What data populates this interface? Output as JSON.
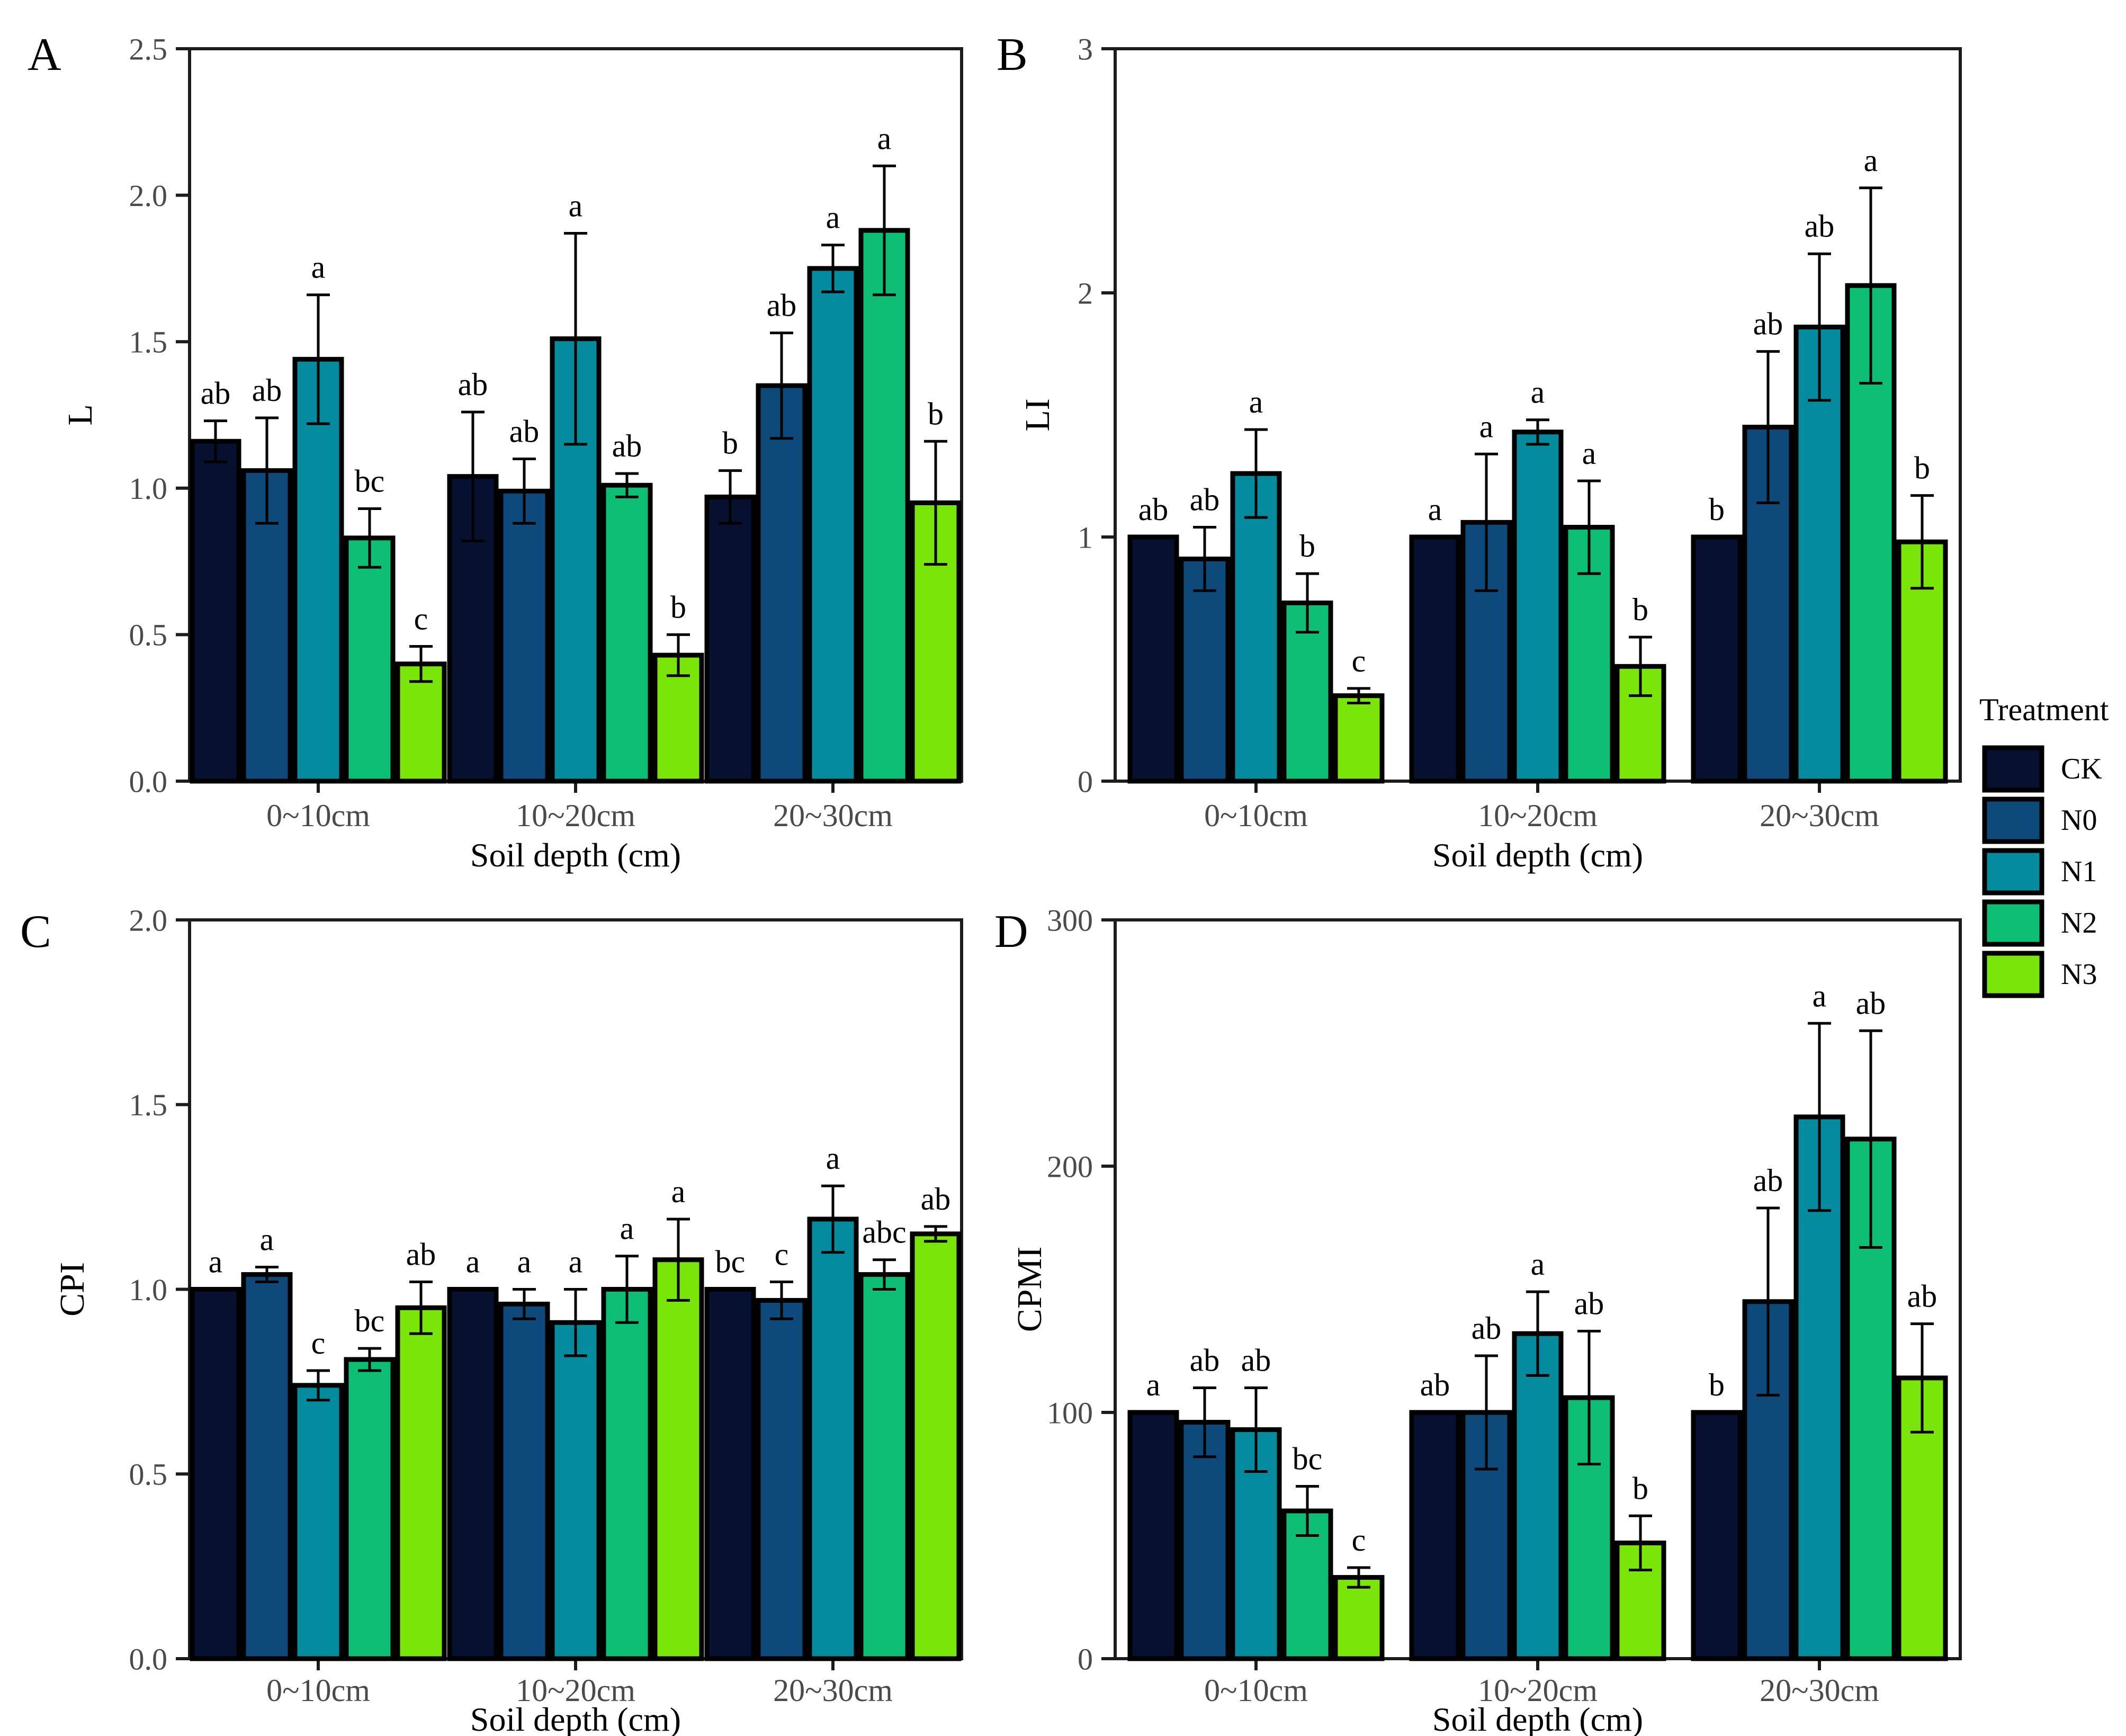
{
  "figure": {
    "background": "#ffffff",
    "axis_color": "#1c1c1c",
    "tick_label_color": "#4a4a4a",
    "xlabel": "Soil depth (cm)",
    "categories": [
      "0~10cm",
      "10~20cm",
      "20~30cm"
    ],
    "legend": {
      "title": "Treatment",
      "items": [
        {
          "label": "CK",
          "color": "#061130"
        },
        {
          "label": "N0",
          "color": "#0d4a7b"
        },
        {
          "label": "N1",
          "color": "#048b9d"
        },
        {
          "label": "N2",
          "color": "#0cbf75"
        },
        {
          "label": "N3",
          "color": "#79e608"
        }
      ]
    }
  },
  "chart_data": [
    {
      "type": "bar",
      "panel_letter": "A",
      "title": "",
      "xlabel": "Soil depth (cm)",
      "ylabel": "L",
      "ylim": [
        0,
        2.5
      ],
      "ytick_step": 0.5,
      "ytick_decimals": 1,
      "grid": false,
      "categories": [
        "0~10cm",
        "10~20cm",
        "20~30cm"
      ],
      "series": [
        {
          "name": "CK",
          "color": "#061130",
          "values": [
            1.16,
            1.04,
            0.97
          ],
          "errors": [
            0.07,
            0.22,
            0.09
          ],
          "sig_letters": [
            "ab",
            "ab",
            "b"
          ]
        },
        {
          "name": "N0",
          "color": "#0d4a7b",
          "values": [
            1.06,
            0.99,
            1.35
          ],
          "errors": [
            0.18,
            0.11,
            0.18
          ],
          "sig_letters": [
            "ab",
            "ab",
            "ab"
          ]
        },
        {
          "name": "N1",
          "color": "#048b9d",
          "values": [
            1.44,
            1.51,
            1.75
          ],
          "errors": [
            0.22,
            0.36,
            0.08
          ],
          "sig_letters": [
            "a",
            "a",
            "a"
          ]
        },
        {
          "name": "N2",
          "color": "#0cbf75",
          "values": [
            0.83,
            1.01,
            1.88
          ],
          "errors": [
            0.1,
            0.04,
            0.22
          ],
          "sig_letters": [
            "bc",
            "ab",
            "a"
          ]
        },
        {
          "name": "N3",
          "color": "#79e608",
          "values": [
            0.4,
            0.43,
            0.95
          ],
          "errors": [
            0.06,
            0.07,
            0.21
          ],
          "sig_letters": [
            "c",
            "b",
            "b"
          ]
        }
      ]
    },
    {
      "type": "bar",
      "panel_letter": "B",
      "title": "",
      "xlabel": "Soil depth (cm)",
      "ylabel": "LI",
      "ylim": [
        0,
        3
      ],
      "ytick_step": 1,
      "ytick_decimals": 0,
      "grid": false,
      "categories": [
        "0~10cm",
        "10~20cm",
        "20~30cm"
      ],
      "series": [
        {
          "name": "CK",
          "color": "#061130",
          "values": [
            1.0,
            1.0,
            1.0
          ],
          "errors": [
            null,
            null,
            null
          ],
          "sig_letters": [
            "ab",
            "a",
            "b"
          ]
        },
        {
          "name": "N0",
          "color": "#0d4a7b",
          "values": [
            0.91,
            1.06,
            1.45
          ],
          "errors": [
            0.13,
            0.28,
            0.31
          ],
          "sig_letters": [
            "ab",
            "a",
            "ab"
          ]
        },
        {
          "name": "N1",
          "color": "#048b9d",
          "values": [
            1.26,
            1.43,
            1.86
          ],
          "errors": [
            0.18,
            0.05,
            0.3
          ],
          "sig_letters": [
            "a",
            "a",
            "ab"
          ]
        },
        {
          "name": "N2",
          "color": "#0cbf75",
          "values": [
            0.73,
            1.04,
            2.03
          ],
          "errors": [
            0.12,
            0.19,
            0.4
          ],
          "sig_letters": [
            "b",
            "a",
            "a"
          ]
        },
        {
          "name": "N3",
          "color": "#79e608",
          "values": [
            0.35,
            0.47,
            0.98
          ],
          "errors": [
            0.03,
            0.12,
            0.19
          ],
          "sig_letters": [
            "c",
            "b",
            "b"
          ]
        }
      ]
    },
    {
      "type": "bar",
      "panel_letter": "C",
      "title": "",
      "xlabel": "Soil depth (cm)",
      "ylabel": "CPI",
      "ylim": [
        0,
        2.0
      ],
      "ytick_step": 0.5,
      "ytick_decimals": 1,
      "grid": false,
      "categories": [
        "0~10cm",
        "10~20cm",
        "20~30cm"
      ],
      "series": [
        {
          "name": "CK",
          "color": "#061130",
          "values": [
            1.0,
            1.0,
            1.0
          ],
          "errors": [
            null,
            null,
            null
          ],
          "sig_letters": [
            "a",
            "a",
            "bc"
          ]
        },
        {
          "name": "N0",
          "color": "#0d4a7b",
          "values": [
            1.04,
            0.96,
            0.97
          ],
          "errors": [
            0.02,
            0.04,
            0.05
          ],
          "sig_letters": [
            "a",
            "a",
            "c"
          ]
        },
        {
          "name": "N1",
          "color": "#048b9d",
          "values": [
            0.74,
            0.91,
            1.19
          ],
          "errors": [
            0.04,
            0.09,
            0.09
          ],
          "sig_letters": [
            "c",
            "a",
            "a"
          ]
        },
        {
          "name": "N2",
          "color": "#0cbf75",
          "values": [
            0.81,
            1.0,
            1.04
          ],
          "errors": [
            0.03,
            0.09,
            0.04
          ],
          "sig_letters": [
            "bc",
            "a",
            "abc"
          ]
        },
        {
          "name": "N3",
          "color": "#79e608",
          "values": [
            0.95,
            1.08,
            1.15
          ],
          "errors": [
            0.07,
            0.11,
            0.02
          ],
          "sig_letters": [
            "ab",
            "a",
            "ab"
          ]
        }
      ]
    },
    {
      "type": "bar",
      "panel_letter": "D",
      "title": "",
      "xlabel": "Soil depth (cm)",
      "ylabel": "CPMI",
      "ylim": [
        0,
        300
      ],
      "ytick_step": 100,
      "ytick_decimals": 0,
      "grid": false,
      "categories": [
        "0~10cm",
        "10~20cm",
        "20~30cm"
      ],
      "series": [
        {
          "name": "CK",
          "color": "#061130",
          "values": [
            100,
            100,
            100
          ],
          "errors": [
            null,
            null,
            null
          ],
          "sig_letters": [
            "a",
            "ab",
            "b"
          ]
        },
        {
          "name": "N0",
          "color": "#0d4a7b",
          "values": [
            96,
            100,
            145
          ],
          "errors": [
            14,
            23,
            38
          ],
          "sig_letters": [
            "ab",
            "ab",
            "ab"
          ]
        },
        {
          "name": "N1",
          "color": "#048b9d",
          "values": [
            93,
            132,
            220
          ],
          "errors": [
            17,
            17,
            38
          ],
          "sig_letters": [
            "ab",
            "a",
            "a"
          ]
        },
        {
          "name": "N2",
          "color": "#0cbf75",
          "values": [
            60,
            106,
            211
          ],
          "errors": [
            10,
            27,
            44
          ],
          "sig_letters": [
            "bc",
            "ab",
            "ab"
          ]
        },
        {
          "name": "N3",
          "color": "#79e608",
          "values": [
            33,
            47,
            114
          ],
          "errors": [
            4,
            11,
            22
          ],
          "sig_letters": [
            "c",
            "b",
            "ab"
          ]
        }
      ]
    }
  ]
}
